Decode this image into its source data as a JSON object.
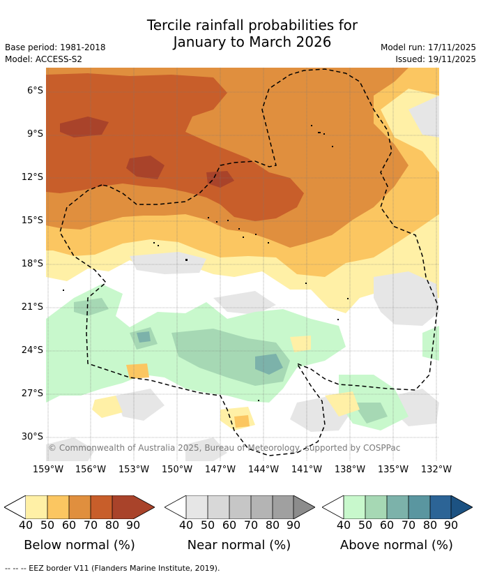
{
  "title_line1": "Tercile rainfall probabilities for",
  "title_line2": "January to March 2026",
  "base_period": "Base period: 1981-2018",
  "model": "Model: ACCESS-S2",
  "model_run": "Model run: 17/11/2025",
  "issued": "Issued: 19/11/2025",
  "copyright": "© Commonwealth of Australia 2025, Bureau of Meteorology, supported by COSPPac",
  "y_ticks": [
    "6°S",
    "9°S",
    "12°S",
    "15°S",
    "18°S",
    "21°S",
    "24°S",
    "27°S",
    "30°S"
  ],
  "x_ticks": [
    "159°W",
    "156°W",
    "153°W",
    "150°W",
    "147°W",
    "144°W",
    "141°W",
    "138°W",
    "135°W",
    "132°W"
  ],
  "legend": [
    {
      "title": "Below normal (%)",
      "ticks": [
        "40",
        "50",
        "60",
        "70",
        "80",
        "90"
      ],
      "colors": [
        "#fff0a6",
        "#fbc661",
        "#e08f3e",
        "#c85e2a",
        "#a9432a",
        "#a9432a"
      ]
    },
    {
      "title": "Near normal (%)",
      "ticks": [
        "40",
        "50",
        "60",
        "70",
        "80",
        "90"
      ],
      "colors": [
        "#e6e6e6",
        "#d8d8d8",
        "#c6c6c6",
        "#b4b4b4",
        "#a0a0a0",
        "#8c8c8c"
      ]
    },
    {
      "title": "Above normal (%)",
      "ticks": [
        "40",
        "50",
        "60",
        "70",
        "80",
        "90"
      ],
      "colors": [
        "#c8f8cc",
        "#a6d8b4",
        "#7cb2aa",
        "#5a96a0",
        "#2c6496",
        "#1c5282"
      ]
    }
  ],
  "footer": "--  --  -- EEZ border V11 (Flanders Marine Institute, 2019)."
}
